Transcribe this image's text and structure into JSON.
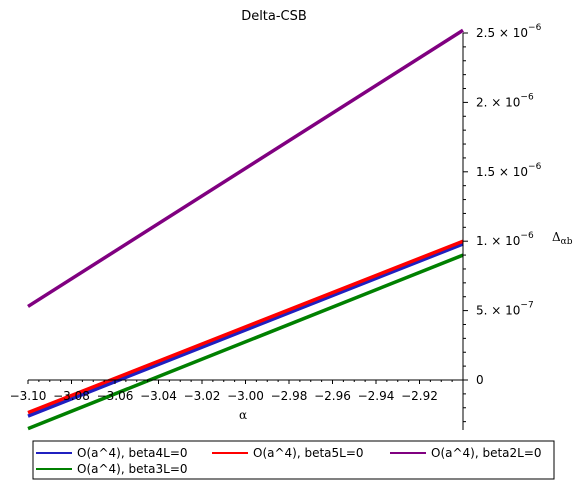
{
  "chart_data": {
    "type": "line",
    "title": "Delta-CSB",
    "xlabel": "α",
    "ylabel": "Δ",
    "ylabel_sub": "αb",
    "xlim": [
      -3.1,
      -2.9
    ],
    "ylim": [
      -3e-07,
      2.5e-06
    ],
    "x_ticks": [
      -3.1,
      -3.08,
      -3.06,
      -3.04,
      -3.02,
      -3.0,
      -2.98,
      -2.96,
      -2.94,
      -2.92
    ],
    "x_tick_labels": [
      "−3.10",
      "−3.08",
      "−3.06",
      "−3.04",
      "−3.02",
      "−3.00",
      "−2.98",
      "−2.96",
      "−2.94",
      "−2.92"
    ],
    "y_ticks": [
      {
        "value": 0,
        "mantissa": "0",
        "exponent": ""
      },
      {
        "value": 5e-07,
        "mantissa": "5.",
        "exponent": "−7"
      },
      {
        "value": 1e-06,
        "mantissa": "1.",
        "exponent": "−6"
      },
      {
        "value": 1.5e-06,
        "mantissa": "1.5",
        "exponent": "−6"
      },
      {
        "value": 2e-06,
        "mantissa": "2.",
        "exponent": "−6"
      },
      {
        "value": 2.5e-06,
        "mantissa": "2.5",
        "exponent": "−6"
      }
    ],
    "times_ten": "× 10",
    "grid": false,
    "legend_position": "bottom",
    "series": [
      {
        "name": "O(a^4), beta4L=0",
        "color": "#2020c0",
        "x": [
          -3.1,
          -2.9
        ],
        "y": [
          -2.6e-07,
          9.8e-07
        ]
      },
      {
        "name": "O(a^4), beta5L=0",
        "color": "#ff0000",
        "x": [
          -3.1,
          -2.9
        ],
        "y": [
          -2.35e-07,
          1e-06
        ]
      },
      {
        "name": "O(a^4), beta2L=0",
        "color": "#800080",
        "x": [
          -3.1,
          -2.9
        ],
        "y": [
          5.3e-07,
          2.52e-06
        ]
      },
      {
        "name": "O(a^4), beta3L=0",
        "color": "#008000",
        "x": [
          -3.1,
          -2.9
        ],
        "y": [
          -3.5e-07,
          9e-07
        ]
      }
    ]
  }
}
